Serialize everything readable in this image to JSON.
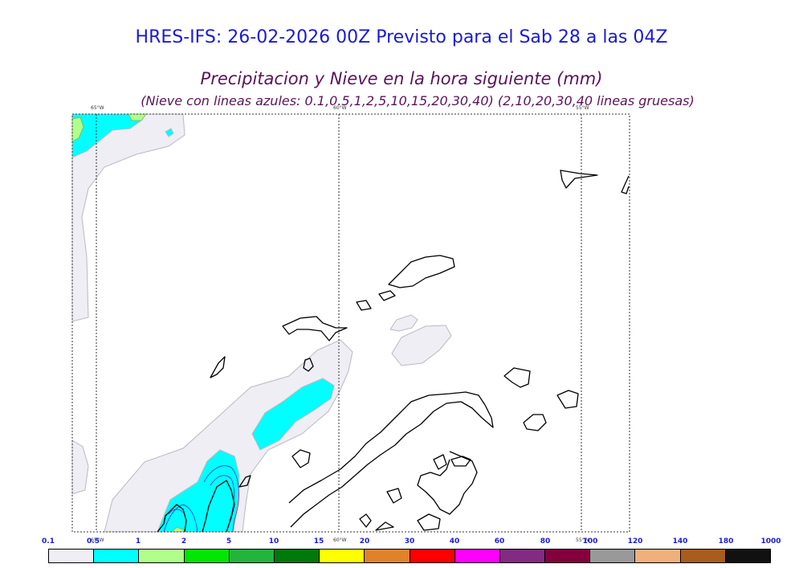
{
  "header": {
    "title": "HRES-IFS: 26-02-2026 00Z Previsto para el Sab 28 a las 04Z",
    "subtitle": "Precipitacion y Nieve en la hora siguiente (mm)",
    "note": "(Nieve con lineas azules: 0.1,0.5,1,2,5,10,15,20,30,40)  (2,10,20,30,40 lineas gruesas)"
  },
  "map": {
    "meridians": [
      {
        "label": "65°W"
      },
      {
        "label": "60°W"
      },
      {
        "label": "55°W"
      }
    ],
    "colors": {
      "coast": "#000000",
      "precip_light": "#eeeef4",
      "precip_low": "#00ffff",
      "precip_mid": "#b0ff8c",
      "snow_line": "#3232c8"
    }
  },
  "legend": {
    "labels": [
      "0.1",
      "0.5",
      "1",
      "2",
      "5",
      "10",
      "15",
      "20",
      "30",
      "40",
      "60",
      "80",
      "100",
      "120",
      "140",
      "180",
      "1000"
    ],
    "colors": [
      "#eeeef4",
      "#00ffff",
      "#b0ff8c",
      "#00e600",
      "#22b43c",
      "#00780a",
      "#ffff00",
      "#e0822a",
      "#ff0000",
      "#ff00ff",
      "#832a82",
      "#84003c",
      "#999999",
      "#f0b07c",
      "#a85c1e",
      "#111111"
    ]
  }
}
